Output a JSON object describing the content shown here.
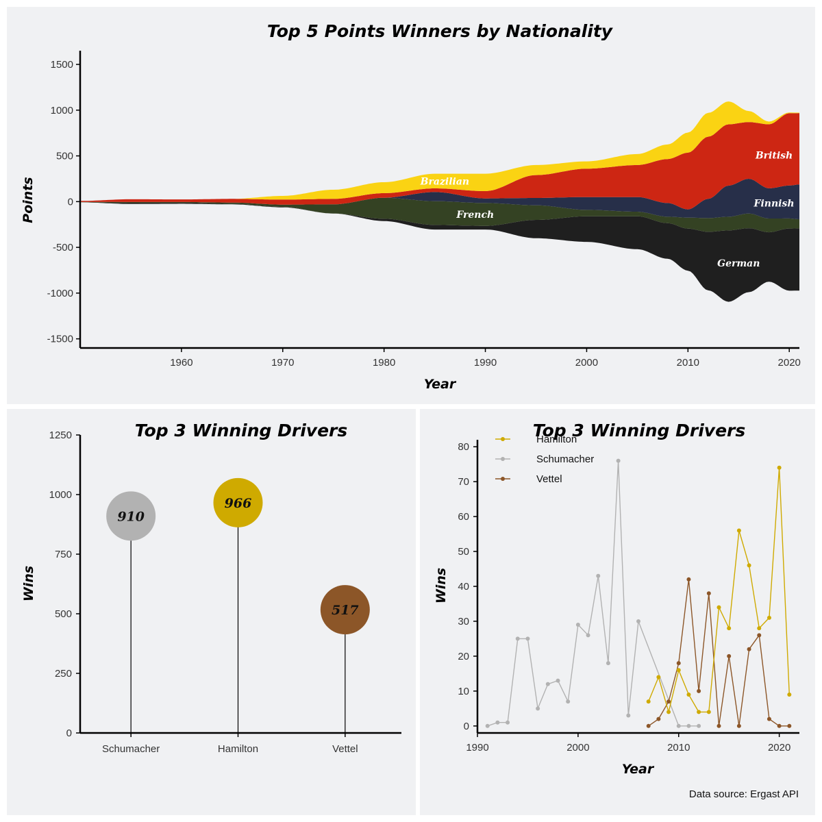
{
  "chart_data": [
    {
      "type": "area",
      "subtype": "streamgraph",
      "title": "Top 5 Points Winners by Nationality",
      "xlabel": "Year",
      "ylabel": "Points",
      "xlim": [
        1950,
        2021
      ],
      "ylim": [
        -1600,
        1650
      ],
      "xticks": [
        1960,
        1970,
        1980,
        1990,
        2000,
        2010,
        2020
      ],
      "yticks": [
        1500,
        1000,
        500,
        0,
        -500,
        -1000,
        -1500
      ],
      "x": [
        1950,
        1955,
        1960,
        1965,
        1970,
        1975,
        1980,
        1985,
        1990,
        1995,
        2000,
        2005,
        2008,
        2010,
        2012,
        2014,
        2016,
        2018,
        2020,
        2021
      ],
      "series": [
        {
          "name": "Brazilian",
          "color": "#fad313",
          "values": [
            0,
            0,
            0,
            0,
            40,
            100,
            120,
            160,
            190,
            110,
            80,
            120,
            160,
            220,
            260,
            250,
            120,
            30,
            8,
            5
          ]
        },
        {
          "name": "British",
          "color": "#cd2613",
          "values": [
            10,
            30,
            28,
            40,
            55,
            60,
            50,
            40,
            80,
            250,
            310,
            350,
            480,
            620,
            680,
            670,
            620,
            700,
            790,
            780
          ]
        },
        {
          "name": "Finnish",
          "color": "#272f49",
          "values": [
            0,
            0,
            0,
            0,
            0,
            0,
            0,
            100,
            50,
            80,
            140,
            160,
            150,
            90,
            210,
            340,
            380,
            330,
            360,
            380
          ]
        },
        {
          "name": "French",
          "color": "#344223",
          "values": [
            5,
            12,
            10,
            15,
            25,
            100,
            230,
            260,
            250,
            160,
            70,
            50,
            70,
            120,
            150,
            150,
            160,
            150,
            110,
            100
          ]
        },
        {
          "name": "German",
          "color": "#1f1f1f",
          "values": [
            0,
            10,
            10,
            5,
            5,
            0,
            25,
            50,
            40,
            200,
            280,
            360,
            390,
            460,
            640,
            780,
            700,
            540,
            680,
            680
          ]
        }
      ],
      "stack_order_bottom_to_top": [
        "German",
        "French",
        "Finnish",
        "British",
        "Brazilian"
      ],
      "labels": {
        "brazilian": "Brazilian",
        "british": "British",
        "finnish": "Finnish",
        "french": "French",
        "german": "German"
      }
    },
    {
      "type": "lollipop",
      "title": "Top 3 Winning Drivers",
      "xlabel": "",
      "ylabel": "Wins",
      "ylim": [
        0,
        1250
      ],
      "yticks": [
        0,
        250,
        500,
        750,
        1000,
        1250
      ],
      "categories": [
        "Schumacher",
        "Hamilton",
        "Vettel"
      ],
      "values": [
        910,
        966,
        517
      ],
      "value_labels": [
        "910",
        "966",
        "517"
      ],
      "colors": [
        "#b2b2b2",
        "#cfaa00",
        "#8c5628"
      ]
    },
    {
      "type": "line",
      "title": "Top 3 Winning Drivers",
      "xlabel": "Year",
      "ylabel": "Wins",
      "xlim": [
        1990,
        2022
      ],
      "ylim": [
        -2,
        82
      ],
      "xticks": [
        1990,
        2000,
        2010,
        2020
      ],
      "yticks": [
        0,
        10,
        20,
        30,
        40,
        50,
        60,
        70,
        80
      ],
      "legend": "top-left",
      "series": [
        {
          "name": "Hamilton",
          "color": "#cfaa00",
          "points": [
            [
              2007,
              7
            ],
            [
              2008,
              14
            ],
            [
              2009,
              4
            ],
            [
              2010,
              16
            ],
            [
              2011,
              9
            ],
            [
              2012,
              4
            ],
            [
              2013,
              4
            ],
            [
              2014,
              34
            ],
            [
              2015,
              28
            ],
            [
              2016,
              56
            ],
            [
              2017,
              46
            ],
            [
              2018,
              28
            ],
            [
              2019,
              31
            ],
            [
              2020,
              74
            ],
            [
              2021,
              9
            ]
          ]
        },
        {
          "name": "Schumacher",
          "color": "#b2b2b2",
          "points": [
            [
              1991,
              0
            ],
            [
              1992,
              1
            ],
            [
              1993,
              1
            ],
            [
              1994,
              25
            ],
            [
              1995,
              25
            ],
            [
              1996,
              5
            ],
            [
              1997,
              12
            ],
            [
              1998,
              13
            ],
            [
              1999,
              7
            ],
            [
              2000,
              29
            ],
            [
              2001,
              26
            ],
            [
              2002,
              43
            ],
            [
              2003,
              18
            ],
            [
              2004,
              76
            ],
            [
              2005,
              3
            ],
            [
              2006,
              30
            ],
            [
              2010,
              0
            ],
            [
              2011,
              0
            ],
            [
              2012,
              0
            ]
          ]
        },
        {
          "name": "Vettel",
          "color": "#8c5628",
          "points": [
            [
              2007,
              0
            ],
            [
              2008,
              2
            ],
            [
              2009,
              7
            ],
            [
              2010,
              18
            ],
            [
              2011,
              42
            ],
            [
              2012,
              10
            ],
            [
              2013,
              38
            ],
            [
              2014,
              0
            ],
            [
              2015,
              20
            ],
            [
              2016,
              0
            ],
            [
              2017,
              22
            ],
            [
              2018,
              26
            ],
            [
              2019,
              2
            ],
            [
              2020,
              0
            ],
            [
              2021,
              0
            ]
          ]
        }
      ],
      "caption": "Data source: Ergast API"
    }
  ]
}
